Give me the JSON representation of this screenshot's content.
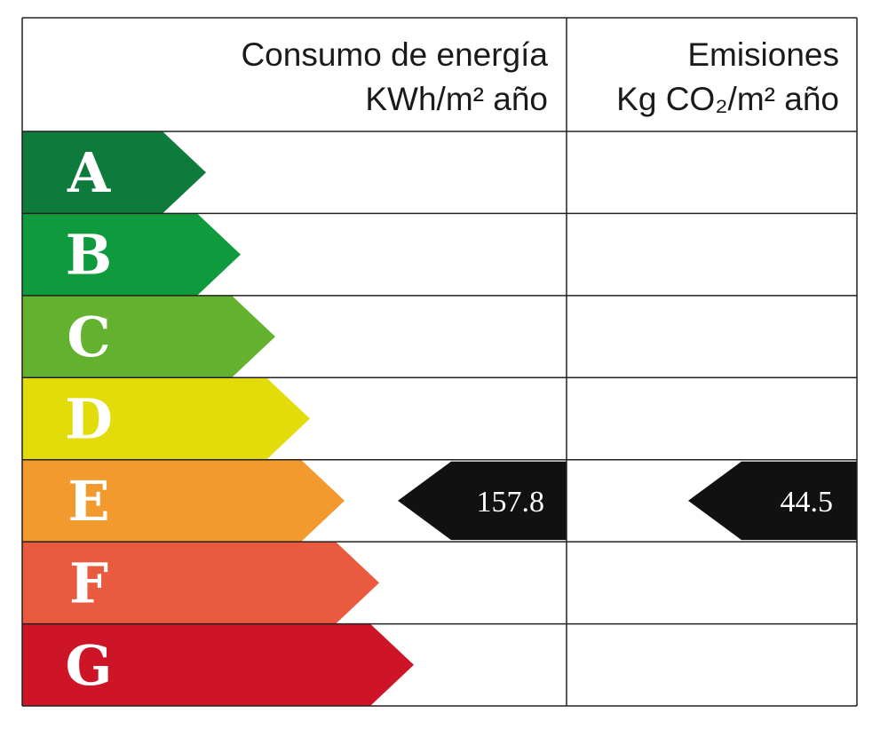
{
  "header": {
    "energy_title": "Consumo de energía",
    "energy_unit": "KWh/m² año",
    "emissions_title": "Emisiones",
    "emissions_unit": "Kg CO₂/m² año"
  },
  "rows": [
    {
      "letter": "A",
      "color": "#0e7a3c"
    },
    {
      "letter": "B",
      "color": "#0f9a3e"
    },
    {
      "letter": "C",
      "color": "#63b22f"
    },
    {
      "letter": "D",
      "color": "#e2dc0b"
    },
    {
      "letter": "E",
      "color": "#f39a2e",
      "energy": 157.8,
      "emissions": 44.5
    },
    {
      "letter": "F",
      "color": "#e95a3f"
    },
    {
      "letter": "G",
      "color": "#cd1527"
    }
  ]
}
